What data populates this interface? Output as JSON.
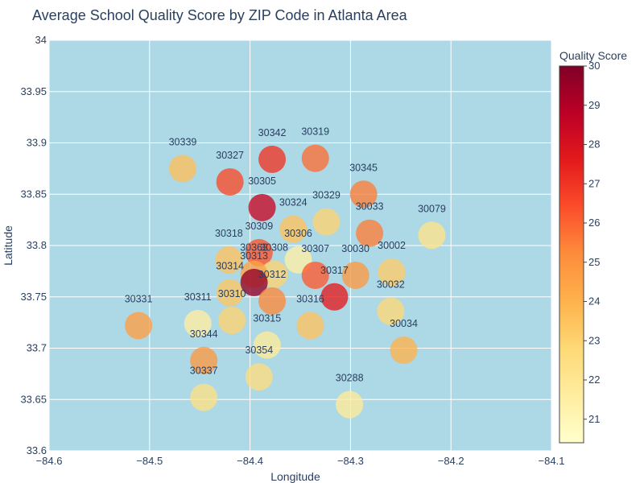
{
  "chart_data": {
    "type": "scatter",
    "title": "Average School Quality Score by ZIP Code in Atlanta Area",
    "xlabel": "Longitude",
    "ylabel": "Latitude",
    "xlim": [
      -84.6,
      -84.1
    ],
    "ylim": [
      33.6,
      34.0
    ],
    "x_ticks": [
      -84.6,
      -84.5,
      -84.4,
      -84.3,
      -84.2,
      -84.1
    ],
    "y_ticks": [
      33.6,
      33.65,
      33.7,
      33.75,
      33.8,
      33.85,
      33.9,
      33.95,
      34.0
    ],
    "x_tick_labels": [
      "−84.6",
      "−84.5",
      "−84.4",
      "−84.3",
      "−84.2",
      "−84.1"
    ],
    "y_tick_labels": [
      "33.6",
      "33.65",
      "33.7",
      "33.75",
      "33.8",
      "33.85",
      "33.9",
      "33.95",
      "34"
    ],
    "grid": true,
    "plot_background": "#add8e6",
    "colorscale_name": "YlOrRd",
    "colorscale": [
      "#ffffcc",
      "#ffeda0",
      "#fed976",
      "#feb24c",
      "#fd8d3c",
      "#fc4e2a",
      "#e31a1c",
      "#bd0026",
      "#800026"
    ],
    "colorbar": {
      "title": "Quality Score",
      "min": 20.4,
      "max": 30,
      "ticks": [
        21,
        22,
        23,
        24,
        25,
        26,
        27,
        28,
        29,
        30
      ]
    },
    "points": [
      {
        "label": "30339",
        "x": -84.467,
        "y": 33.875,
        "score": 23.6
      },
      {
        "label": "30327",
        "x": -84.42,
        "y": 33.862,
        "score": 26.5
      },
      {
        "label": "30342",
        "x": -84.378,
        "y": 33.884,
        "score": 27.0
      },
      {
        "label": "30319",
        "x": -84.335,
        "y": 33.885,
        "score": 25.8
      },
      {
        "label": "30345",
        "x": -84.287,
        "y": 33.85,
        "score": 25.5
      },
      {
        "label": "30305",
        "x": -84.388,
        "y": 33.837,
        "score": 28.5
      },
      {
        "label": "30324",
        "x": -84.357,
        "y": 33.816,
        "score": 23.5
      },
      {
        "label": "30329",
        "x": -84.324,
        "y": 33.823,
        "score": 23.0
      },
      {
        "label": "30033",
        "x": -84.281,
        "y": 33.812,
        "score": 25.5
      },
      {
        "label": "30079",
        "x": -84.219,
        "y": 33.81,
        "score": 22.2
      },
      {
        "label": "30318",
        "x": -84.421,
        "y": 33.786,
        "score": 23.5
      },
      {
        "label": "30309",
        "x": -84.391,
        "y": 33.793,
        "score": 26.3
      },
      {
        "label": "30306",
        "x": -84.352,
        "y": 33.786,
        "score": 21.5
      },
      {
        "label": "30307",
        "x": -84.335,
        "y": 33.771,
        "score": 26.2
      },
      {
        "label": "30030",
        "x": -84.295,
        "y": 33.771,
        "score": 24.8
      },
      {
        "label": "30002",
        "x": -84.259,
        "y": 33.774,
        "score": 23.2
      },
      {
        "label": "30308",
        "x": -84.376,
        "y": 33.772,
        "score": 23.0
      },
      {
        "label": "30363",
        "x": -84.396,
        "y": 33.772,
        "score": 24.5
      },
      {
        "label": "30314",
        "x": -84.42,
        "y": 33.754,
        "score": 23.4
      },
      {
        "label": "30313",
        "x": -84.396,
        "y": 33.764,
        "score": 29.6
      },
      {
        "label": "30312",
        "x": -84.378,
        "y": 33.746,
        "score": 25.3
      },
      {
        "label": "30317",
        "x": -84.316,
        "y": 33.75,
        "score": 27.6
      },
      {
        "label": "30310",
        "x": -84.418,
        "y": 33.727,
        "score": 23.0
      },
      {
        "label": "30311",
        "x": -84.452,
        "y": 33.724,
        "score": 21.6
      },
      {
        "label": "30316",
        "x": -84.34,
        "y": 33.722,
        "score": 23.5
      },
      {
        "label": "30032",
        "x": -84.26,
        "y": 33.736,
        "score": 22.8
      },
      {
        "label": "30331",
        "x": -84.511,
        "y": 33.722,
        "score": 24.6
      },
      {
        "label": "30315",
        "x": -84.383,
        "y": 33.703,
        "score": 21.8
      },
      {
        "label": "30034",
        "x": -84.247,
        "y": 33.698,
        "score": 24.0
      },
      {
        "label": "30344",
        "x": -84.446,
        "y": 33.688,
        "score": 24.8
      },
      {
        "label": "30354",
        "x": -84.391,
        "y": 33.672,
        "score": 22.6
      },
      {
        "label": "30337",
        "x": -84.446,
        "y": 33.652,
        "score": 22.4
      },
      {
        "label": "30288",
        "x": -84.301,
        "y": 33.645,
        "score": 21.8
      }
    ]
  }
}
